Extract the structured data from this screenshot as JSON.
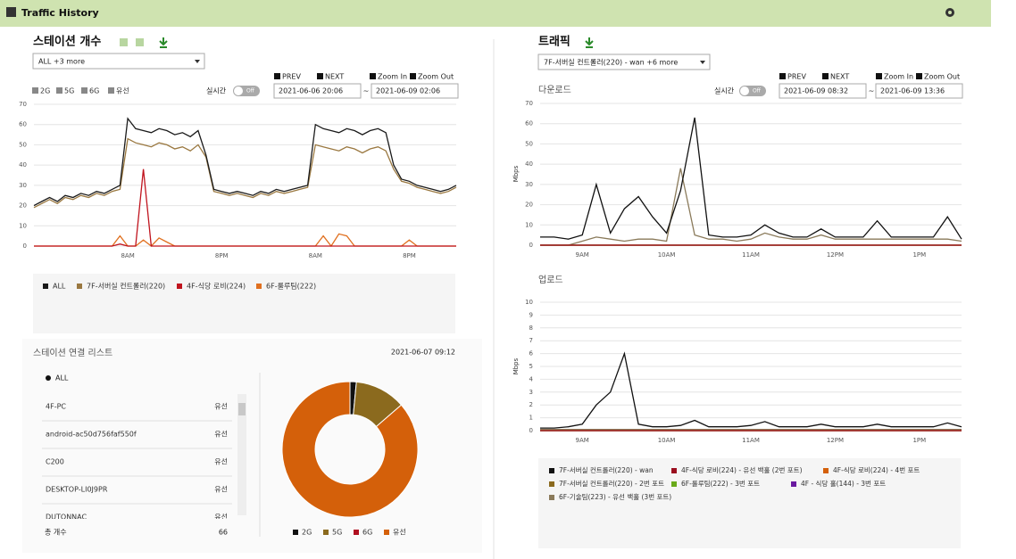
{
  "header": {
    "title": "Traffic History"
  },
  "station": {
    "title": "스테이션 개수",
    "filter": "ALL +3 more",
    "checkboxes": [
      "2G",
      "5G",
      "6G",
      "유선"
    ],
    "realtime": "실시간",
    "toggle": "Off",
    "prev": "PREV",
    "next": "NEXT",
    "zoom_in": "Zoom In",
    "zoom_out": "Zoom Out",
    "start": "2021-06-06 20:06",
    "separator": "~",
    "end": "2021-06-09 02:06",
    "chart": {
      "type": "line",
      "categories": [
        null,
        null,
        null,
        null,
        null,
        null,
        null,
        null,
        null,
        null,
        null,
        null,
        "8AM",
        null,
        null,
        null,
        null,
        null,
        null,
        null,
        null,
        null,
        null,
        null,
        "8PM",
        null,
        null,
        null,
        null,
        null,
        null,
        null,
        null,
        null,
        null,
        null,
        "8AM",
        null,
        null,
        null,
        null,
        null,
        null,
        null,
        null,
        null,
        null,
        null,
        "8PM",
        null,
        null,
        null,
        null,
        null,
        null
      ],
      "ylim": [
        0,
        70
      ],
      "yticks": [
        0,
        10,
        20,
        30,
        40,
        50,
        60,
        70
      ],
      "grid": true,
      "series": [
        {
          "name": "ALL",
          "color": "#1a1a1a",
          "values": [
            20,
            22,
            24,
            22,
            25,
            24,
            26,
            25,
            27,
            26,
            28,
            30,
            63,
            58,
            57,
            56,
            58,
            57,
            55,
            56,
            54,
            57,
            45,
            28,
            27,
            26,
            27,
            26,
            25,
            27,
            26,
            28,
            27,
            28,
            29,
            30,
            60,
            58,
            57,
            56,
            58,
            57,
            55,
            57,
            58,
            56,
            40,
            33,
            32,
            30,
            29,
            28,
            27,
            28,
            30
          ]
        },
        {
          "name": "7F-서버실 컨트롤러(220)",
          "color": "#9a7840",
          "values": [
            19,
            21,
            23,
            21,
            24,
            23,
            25,
            24,
            26,
            25,
            27,
            28,
            53,
            51,
            50,
            49,
            51,
            50,
            48,
            49,
            47,
            50,
            44,
            27,
            26,
            25,
            26,
            25,
            24,
            26,
            25,
            27,
            26,
            27,
            28,
            29,
            50,
            49,
            48,
            47,
            49,
            48,
            46,
            48,
            49,
            47,
            38,
            32,
            31,
            29,
            28,
            27,
            26,
            27,
            29
          ]
        },
        {
          "name": "4F-식당 로비(224)",
          "color": "#c0141e",
          "values": [
            0,
            0,
            0,
            0,
            0,
            0,
            0,
            0,
            0,
            0,
            0,
            1,
            0,
            0,
            38,
            0,
            0,
            0,
            0,
            0,
            0,
            0,
            0,
            0,
            0,
            0,
            0,
            0,
            0,
            0,
            0,
            0,
            0,
            0,
            0,
            0,
            0,
            0,
            0,
            0,
            0,
            0,
            0,
            0,
            0,
            0,
            0,
            0,
            0,
            0,
            0,
            0,
            0,
            0,
            0
          ]
        },
        {
          "name": "6F-룰루팀(222)",
          "color": "#e07020",
          "values": [
            0,
            0,
            0,
            0,
            0,
            0,
            0,
            0,
            0,
            0,
            0,
            5,
            0,
            0,
            3,
            0,
            4,
            2,
            0,
            0,
            0,
            0,
            0,
            0,
            0,
            0,
            0,
            0,
            0,
            0,
            0,
            0,
            0,
            0,
            0,
            0,
            0,
            5,
            0,
            6,
            5,
            0,
            0,
            0,
            0,
            0,
            0,
            0,
            3,
            0,
            0,
            0,
            0,
            0,
            0
          ]
        }
      ]
    }
  },
  "station_list": {
    "title": "스테이션 연결 리스트",
    "time": "2021-06-07 09:12",
    "all": "ALL",
    "rows": [
      [
        "4F-PC",
        "유선"
      ],
      [
        "android-ac50d756faf550f",
        "유선"
      ],
      [
        "C200",
        "유선"
      ],
      [
        "DESKTOP-LI0J9PR",
        "유선"
      ],
      [
        "DUTONNAC",
        "유선"
      ]
    ],
    "total_label": "총 개수",
    "total": 66,
    "chart": {
      "type": "pie",
      "categories": [
        "2G",
        "5G",
        "6G",
        "유선"
      ],
      "values": [
        1,
        8,
        0,
        57
      ],
      "colors": [
        "#111111",
        "#8b6a1e",
        "#b01020",
        "#d4600a"
      ]
    }
  },
  "traffic": {
    "title": "트래픽",
    "filter": "7F-서버실 컨트롤러(220) - wan +6 more",
    "realtime": "실시간",
    "toggle": "Off",
    "prev": "PREV",
    "next": "NEXT",
    "zoom_in": "Zoom In",
    "zoom_out": "Zoom Out",
    "start": "2021-06-09 08:32",
    "separator": "~",
    "end": "2021-06-09 13:36",
    "x": [
      null,
      null,
      null,
      "9AM",
      null,
      null,
      null,
      null,
      null,
      "10AM",
      null,
      null,
      null,
      null,
      null,
      "11AM",
      null,
      null,
      null,
      null,
      null,
      "12PM",
      null,
      null,
      null,
      null,
      null,
      "1PM",
      null,
      null,
      null
    ],
    "download": {
      "type": "line",
      "title": "다운로드",
      "y_label": "Mbps",
      "ylim": [
        0,
        70
      ],
      "yticks": [
        0,
        10,
        20,
        30,
        40,
        50,
        60,
        70
      ],
      "grid": true
    },
    "upload": {
      "type": "line",
      "title": "업로드",
      "y_label": "Mbps",
      "ylim": [
        0,
        10
      ],
      "yticks": [
        0,
        1,
        2,
        3,
        4,
        5,
        6,
        7,
        8,
        9,
        10
      ],
      "grid": true
    },
    "series": [
      {
        "name": "7F-서버실 컨트롤러(220) - wan",
        "color": "#111111",
        "download": [
          4,
          4,
          3,
          5,
          30,
          6,
          18,
          24,
          14,
          6,
          27,
          63,
          5,
          4,
          4,
          5,
          10,
          6,
          4,
          4,
          8,
          4,
          4,
          4,
          12,
          4,
          4,
          4,
          4,
          14,
          3
        ],
        "upload": [
          0.2,
          0.2,
          0.3,
          0.5,
          2,
          3,
          6,
          0.5,
          0.3,
          0.3,
          0.4,
          0.8,
          0.3,
          0.3,
          0.3,
          0.4,
          0.7,
          0.3,
          0.3,
          0.3,
          0.5,
          0.3,
          0.3,
          0.3,
          0.5,
          0.3,
          0.3,
          0.3,
          0.3,
          0.6,
          0.3
        ]
      },
      {
        "name": "4F-식당 로비(224) - 유선 백홀 (2번 포트)",
        "color": "#9a0e1e",
        "download": [
          0,
          0,
          0,
          0,
          0,
          0,
          0,
          0,
          0,
          0,
          0,
          0,
          0,
          0,
          0,
          0,
          0,
          0,
          0,
          0,
          0,
          0,
          0,
          0,
          0,
          0,
          0,
          0,
          0,
          0,
          0
        ],
        "upload": [
          0,
          0,
          0,
          0,
          0,
          0,
          0,
          0,
          0,
          0,
          0,
          0,
          0,
          0,
          0,
          0,
          0,
          0,
          0,
          0,
          0,
          0,
          0,
          0,
          0,
          0,
          0,
          0,
          0,
          0,
          0
        ]
      },
      {
        "name": "4F-식당 로비(224) - 4번 포트",
        "color": "#d4600a",
        "download": [
          0,
          0,
          0,
          0,
          0,
          0,
          0,
          0,
          0,
          0,
          0,
          0,
          0,
          0,
          0,
          0,
          0,
          0,
          0,
          0,
          0,
          0,
          0,
          0,
          0,
          0,
          0,
          0,
          0,
          0,
          0
        ],
        "upload": [
          0,
          0,
          0,
          0,
          0,
          0,
          0,
          0,
          0,
          0,
          0,
          0,
          0,
          0,
          0,
          0,
          0,
          0,
          0,
          0,
          0,
          0,
          0,
          0,
          0,
          0,
          0,
          0,
          0,
          0,
          0
        ]
      },
      {
        "name": "7F-서버실 컨트롤러(220) - 2번 포트",
        "color": "#8b6a1e",
        "download": [
          0,
          0,
          0,
          0,
          0,
          0,
          0,
          0,
          0,
          0,
          0,
          0,
          0,
          0,
          0,
          0,
          0,
          0,
          0,
          0,
          0,
          0,
          0,
          0,
          0,
          0,
          0,
          0,
          0,
          0,
          0
        ],
        "upload": [
          0,
          0,
          0,
          0,
          0,
          0,
          0,
          0,
          0,
          0,
          0,
          0,
          0,
          0,
          0,
          0,
          0,
          0,
          0,
          0,
          0,
          0,
          0,
          0,
          0,
          0,
          0,
          0,
          0,
          0,
          0
        ]
      },
      {
        "name": "6F-룰루팀(222) - 3번 포트",
        "color": "#6aaa1a",
        "download": [
          0,
          0,
          0,
          0,
          0,
          0,
          0,
          0,
          0,
          0,
          0,
          0,
          0,
          0,
          0,
          0,
          0,
          0,
          0,
          0,
          0,
          0,
          0,
          0,
          0,
          0,
          0,
          0,
          0,
          0,
          0
        ],
        "upload": [
          0,
          0,
          0,
          0,
          0,
          0,
          0,
          0,
          0,
          0,
          0,
          0,
          0,
          0,
          0,
          0,
          0,
          0,
          0,
          0,
          0,
          0,
          0,
          0,
          0,
          0,
          0,
          0,
          0,
          0,
          0
        ]
      },
      {
        "name": "4F - 식당 홀(144) - 3번 포트",
        "color": "#6a1aa0",
        "download": [
          0,
          0,
          0,
          0,
          0,
          0,
          0,
          0,
          0,
          0,
          0,
          0,
          0,
          0,
          0,
          0,
          0,
          0,
          0,
          0,
          0,
          0,
          0,
          0,
          0,
          0,
          0,
          0,
          0,
          0,
          0
        ],
        "upload": [
          0,
          0,
          0,
          0,
          0,
          0,
          0,
          0,
          0,
          0,
          0,
          0,
          0,
          0,
          0,
          0,
          0,
          0,
          0,
          0,
          0,
          0,
          0,
          0,
          0,
          0,
          0,
          0,
          0,
          0,
          0
        ]
      },
      {
        "name": "6F-기술팀(223) - 유선 백홀 (3번 포트)",
        "color": "#8a7a5a",
        "download": [
          0,
          0,
          0,
          2,
          4,
          3,
          2,
          3,
          3,
          2,
          38,
          5,
          3,
          3,
          2,
          3,
          6,
          4,
          3,
          3,
          5,
          3,
          3,
          3,
          3,
          3,
          3,
          3,
          3,
          3,
          2
        ],
        "upload": [
          0.1,
          0.1,
          0.1,
          0.1,
          0.1,
          0.1,
          0.1,
          0.1,
          0.1,
          0.1,
          0.1,
          0.1,
          0.1,
          0.1,
          0.1,
          0.1,
          0.1,
          0.1,
          0.1,
          0.1,
          0.1,
          0.1,
          0.1,
          0.1,
          0.1,
          0.1,
          0.1,
          0.1,
          0.1,
          0.1,
          0.1
        ]
      }
    ]
  }
}
